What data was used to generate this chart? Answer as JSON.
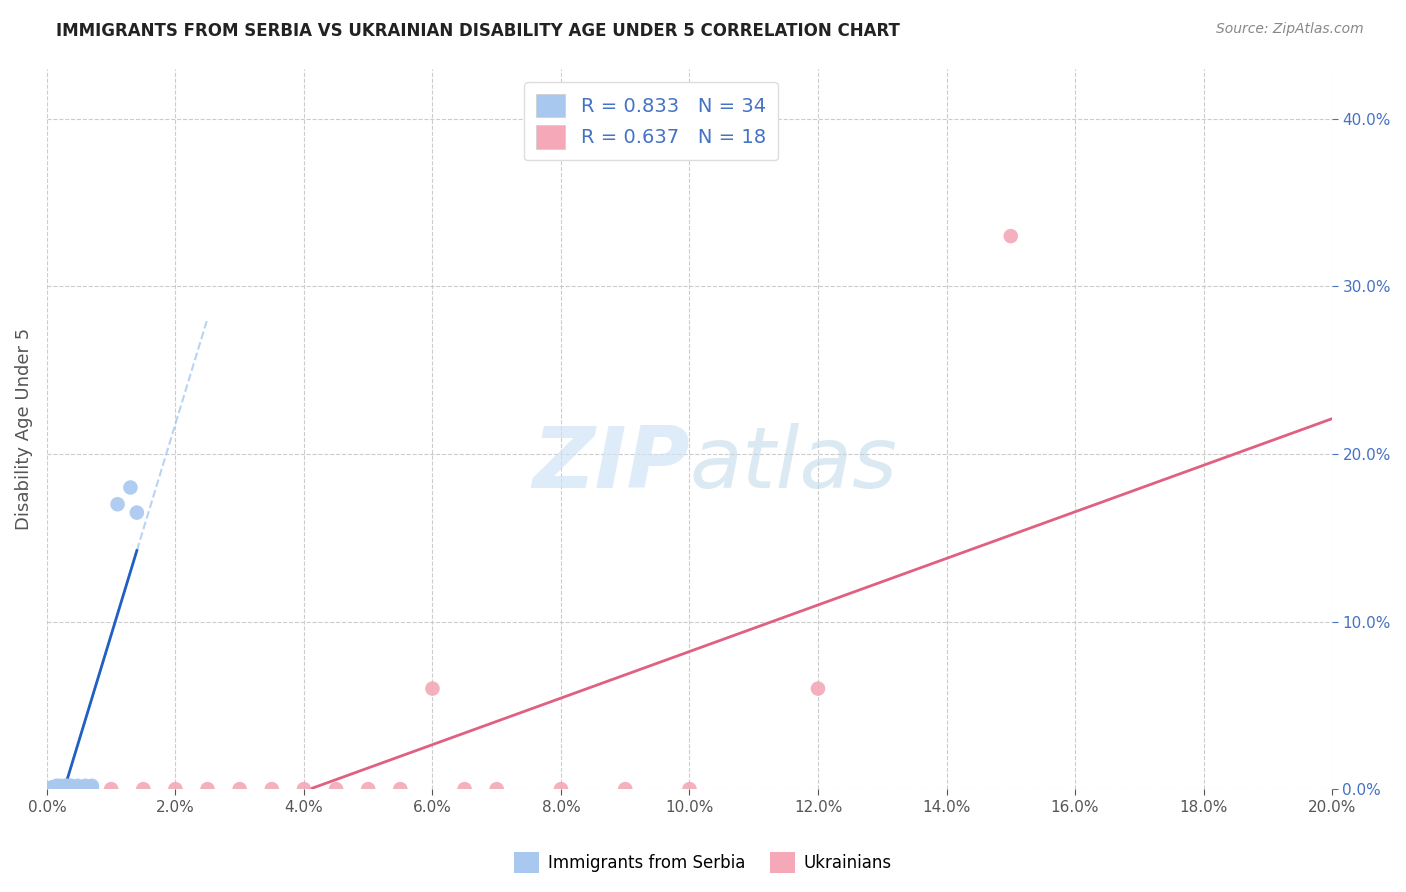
{
  "title": "IMMIGRANTS FROM SERBIA VS UKRAINIAN DISABILITY AGE UNDER 5 CORRELATION CHART",
  "source": "Source: ZipAtlas.com",
  "ylabel": "Disability Age Under 5",
  "xlim": [
    0.0,
    0.2
  ],
  "ylim": [
    0.0,
    0.43
  ],
  "xticks": [
    0.0,
    0.02,
    0.04,
    0.06,
    0.08,
    0.1,
    0.12,
    0.14,
    0.16,
    0.18,
    0.2
  ],
  "yticks": [
    0.0,
    0.1,
    0.2,
    0.3,
    0.4
  ],
  "serbia_R": 0.833,
  "serbia_N": 34,
  "ukraine_R": 0.637,
  "ukraine_N": 18,
  "serbia_color": "#a8c8f0",
  "ukraine_color": "#f4a8b8",
  "serbia_line_color": "#2060c0",
  "ukraine_line_color": "#e06080",
  "serbia_dash_color": "#a8c8f0",
  "watermark_color": "#d0e4f7",
  "background_color": "#ffffff",
  "serbia_x": [
    0.0005,
    0.001,
    0.0008,
    0.0012,
    0.0015,
    0.002,
    0.0018,
    0.0022,
    0.0025,
    0.003,
    0.003,
    0.0028,
    0.0035,
    0.004,
    0.004,
    0.0038,
    0.0042,
    0.005,
    0.005,
    0.0048,
    0.006,
    0.006,
    0.007,
    0.007,
    0.0008,
    0.0012,
    0.0015,
    0.002,
    0.0025,
    0.003,
    0.0035,
    0.011,
    0.013,
    0.014
  ],
  "serbia_y": [
    0.0,
    0.0,
    0.001,
    0.0,
    0.0,
    0.0,
    0.001,
    0.001,
    0.001,
    0.0,
    0.001,
    0.002,
    0.001,
    0.0,
    0.001,
    0.002,
    0.001,
    0.0,
    0.001,
    0.002,
    0.001,
    0.002,
    0.001,
    0.002,
    0.001,
    0.001,
    0.002,
    0.002,
    0.001,
    0.002,
    0.002,
    0.17,
    0.18,
    0.165
  ],
  "ukraine_x": [
    0.01,
    0.015,
    0.02,
    0.025,
    0.03,
    0.035,
    0.04,
    0.045,
    0.05,
    0.055,
    0.065,
    0.07,
    0.08,
    0.09,
    0.1,
    0.12,
    0.06,
    0.15
  ],
  "ukraine_y": [
    0.0,
    0.0,
    0.0,
    0.0,
    0.0,
    0.0,
    0.0,
    0.0,
    0.0,
    0.0,
    0.0,
    0.0,
    0.0,
    0.0,
    0.0,
    0.06,
    0.06,
    0.33
  ]
}
